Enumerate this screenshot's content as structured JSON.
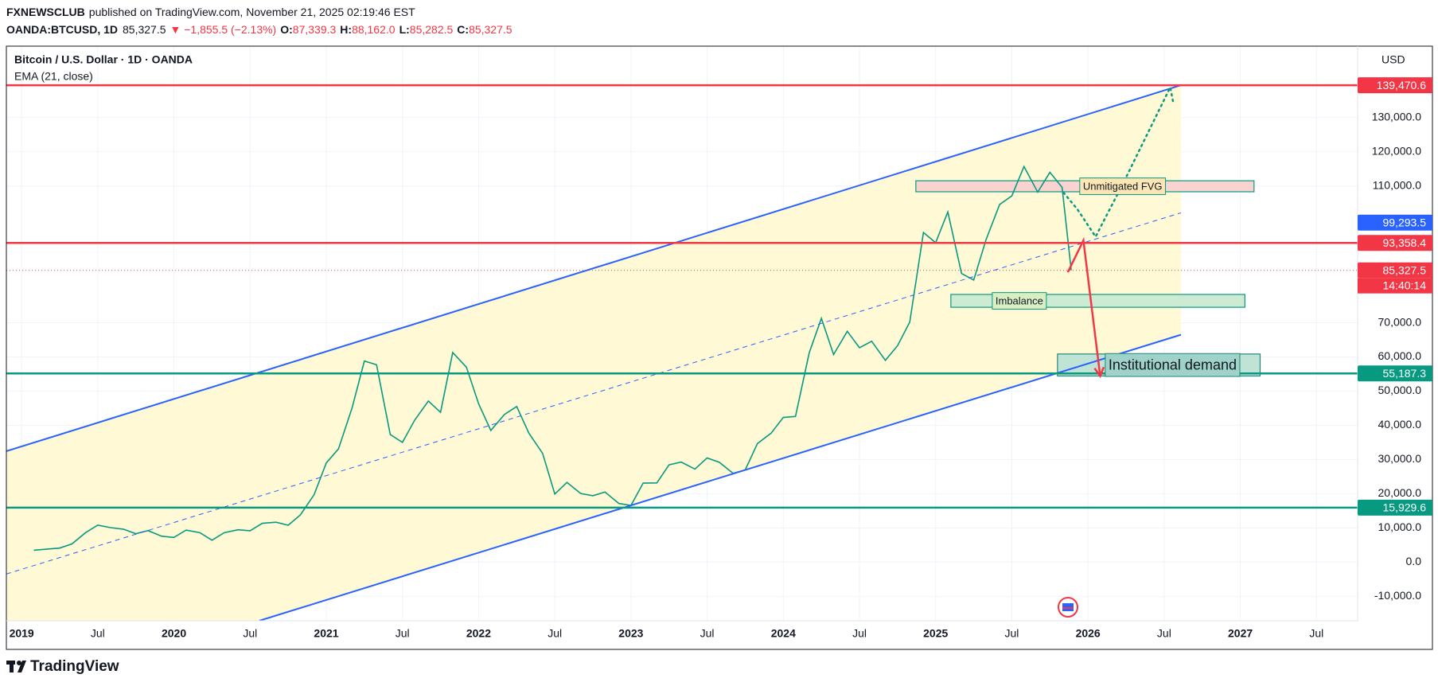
{
  "header": {
    "author": "FXNEWSCLUB",
    "published": "published on TradingView.com, November 21, 2025 02:19:46 EST",
    "symbol": "OANDA:BTCUSD, 1D",
    "last": "85,327.5",
    "change": "▼ −1,855.5 (−2.13%)",
    "ohlc": [
      {
        "label": "O:",
        "value": "87,339.3"
      },
      {
        "label": "H:",
        "value": "88,162.0"
      },
      {
        "label": "L:",
        "value": "85,282.5"
      },
      {
        "label": "C:",
        "value": "85,327.5"
      }
    ]
  },
  "footer": {
    "brand": "TradingView"
  },
  "chart_data": {
    "type": "line",
    "title": "Bitcoin / U.S. Dollar · 1D · OANDA",
    "indicator": "EMA (21, close)",
    "currency": "USD",
    "xlim": [
      2018.9,
      2027.77
    ],
    "ylim": [
      -17160,
      150900
    ],
    "xticks": [
      2019,
      {
        "value": 2019.5,
        "label": "Jul"
      },
      2020,
      {
        "value": 2020.5,
        "label": "Jul"
      },
      2021,
      {
        "value": 2021.5,
        "label": "Jul"
      },
      2022,
      {
        "value": 2022.5,
        "label": "Jul"
      },
      2023,
      {
        "value": 2023.5,
        "label": "Jul"
      },
      2024,
      {
        "value": 2024.5,
        "label": "Jul"
      },
      2025,
      {
        "value": 2025.5,
        "label": "Jul"
      },
      2026,
      {
        "value": 2026.5,
        "label": "Jul"
      },
      2027,
      {
        "value": 2027.5,
        "label": "Jul"
      }
    ],
    "yticks": [
      {
        "value": -10000,
        "label": "-10,000.0"
      },
      {
        "value": 0,
        "label": "0.0"
      },
      {
        "value": 10000,
        "label": "10,000.0"
      },
      {
        "value": 20000,
        "label": "20,000.0"
      },
      {
        "value": 30000,
        "label": "30,000.0"
      },
      {
        "value": 40000,
        "label": "40,000.0"
      },
      {
        "value": 50000,
        "label": "50,000.0"
      },
      {
        "value": 60000,
        "label": "60,000.0"
      },
      {
        "value": 70000,
        "label": "70,000.0"
      },
      {
        "value": 110000,
        "label": "110,000.0"
      },
      {
        "value": 120000,
        "label": "120,000.0"
      },
      {
        "value": 130000,
        "label": "130,000.0"
      }
    ],
    "grid": true,
    "series": [
      {
        "color": "#089981",
        "x": [
          2019.08,
          2019.17,
          2019.25,
          2019.33,
          2019.42,
          2019.5,
          2019.58,
          2019.67,
          2019.75,
          2019.83,
          2019.92,
          2020.0,
          2020.08,
          2020.17,
          2020.25,
          2020.33,
          2020.42,
          2020.5,
          2020.58,
          2020.67,
          2020.75,
          2020.83,
          2020.92,
          2021.0,
          2021.08,
          2021.17,
          2021.25,
          2021.33,
          2021.42,
          2021.5,
          2021.58,
          2021.67,
          2021.75,
          2021.83,
          2021.92,
          2022.0,
          2022.08,
          2022.17,
          2022.25,
          2022.33,
          2022.42,
          2022.5,
          2022.58,
          2022.67,
          2022.75,
          2022.83,
          2022.92,
          2023.0,
          2023.08,
          2023.17,
          2023.25,
          2023.33,
          2023.42,
          2023.5,
          2023.58,
          2023.67,
          2023.75,
          2023.83,
          2023.92,
          2024.0,
          2024.08,
          2024.17,
          2024.25,
          2024.33,
          2024.42,
          2024.5,
          2024.58,
          2024.67,
          2024.75,
          2024.83,
          2024.92,
          2025.0,
          2025.08,
          2025.17,
          2025.25,
          2025.33,
          2025.42,
          2025.5,
          2025.58,
          2025.67,
          2025.75,
          2025.83,
          2025.89
        ],
        "values": [
          3450,
          3800,
          4100,
          5300,
          8600,
          10800,
          10100,
          9600,
          8300,
          9200,
          7550,
          7200,
          9350,
          8600,
          6400,
          8600,
          9450,
          9150,
          11350,
          11650,
          10780,
          13800,
          19700,
          29000,
          33100,
          45200,
          58800,
          57700,
          37300,
          35000,
          41500,
          47100,
          43800,
          61300,
          57000,
          46300,
          38500,
          43200,
          45500,
          37700,
          31800,
          19900,
          23300,
          20050,
          19400,
          20500,
          17150,
          16550,
          23100,
          23150,
          28450,
          29250,
          27200,
          30450,
          29200,
          25950,
          26950,
          34650,
          37700,
          42300,
          42600,
          61200,
          71300,
          60700,
          67500,
          62700,
          64600,
          59000,
          63300,
          70200,
          96400,
          93400,
          102400,
          84400,
          82500,
          94200,
          104600,
          107100,
          115700,
          108200,
          114000,
          109600,
          85327.5
        ]
      }
    ],
    "channel": {
      "color": "#2962ff",
      "fill": "#fff9d6",
      "upper": [
        [
          2018.9,
          32440
        ],
        [
          2026.61,
          139470
        ]
      ],
      "mid": [
        [
          2018.9,
          -3490
        ],
        [
          2026.61,
          102150
        ]
      ],
      "lower": [
        [
          2020.56,
          -17160
        ],
        [
          2026.61,
          66490
        ]
      ]
    },
    "levels": [
      {
        "value": 139470.6,
        "label": "139,470.6",
        "color": "#f23645",
        "line": "solid"
      },
      {
        "value": 99293.5,
        "label": "99,293.5",
        "color": "#2962ff",
        "line": "none"
      },
      {
        "value": 93358.4,
        "label": "93,358.4",
        "color": "#f23645",
        "line": "solid"
      },
      {
        "value": 85327.5,
        "label": "85,327.5",
        "color": "#f23645",
        "line": "dotted",
        "countdown": "14:40:14"
      },
      {
        "value": 55187.3,
        "label": "55,187.3",
        "color": "#089981",
        "line": "solid"
      },
      {
        "value": 15929.6,
        "label": "15,929.6",
        "color": "#089981",
        "line": "solid"
      }
    ],
    "zones": [
      {
        "label": "Unmitigated FVG",
        "x": [
          2024.87,
          2027.09
        ],
        "y": [
          108310,
          111530
        ],
        "fill": "#f8d3d0",
        "stroke": "#089981",
        "label_fill": "#fbe7b5"
      },
      {
        "label": "Imbalance",
        "x": [
          2025.1,
          2027.03
        ],
        "y": [
          74530,
          78280
        ],
        "fill": "#cdebd3",
        "stroke": "#089981",
        "label_fill": "#d8efc4"
      },
      {
        "label": "Institutional demand",
        "x": [
          2025.8,
          2027.13
        ],
        "y": [
          54420,
          60860
        ],
        "fill": "#bfe3d5",
        "stroke": "#22867a",
        "label_fill": "#9fd3c9"
      }
    ],
    "paths": [
      {
        "color": "#f23645",
        "style": "arrow",
        "points": [
          [
            2025.87,
            84990
          ],
          [
            2025.97,
            94100
          ],
          [
            2026.08,
            54420
          ]
        ]
      },
      {
        "color": "#089981",
        "style": "dotted",
        "points": [
          [
            2025.84,
            108040
          ],
          [
            2025.93,
            103220
          ],
          [
            2026.05,
            95170
          ],
          [
            2026.23,
            110720
          ],
          [
            2026.54,
            138870
          ],
          [
            2026.56,
            134300
          ]
        ]
      }
    ]
  }
}
